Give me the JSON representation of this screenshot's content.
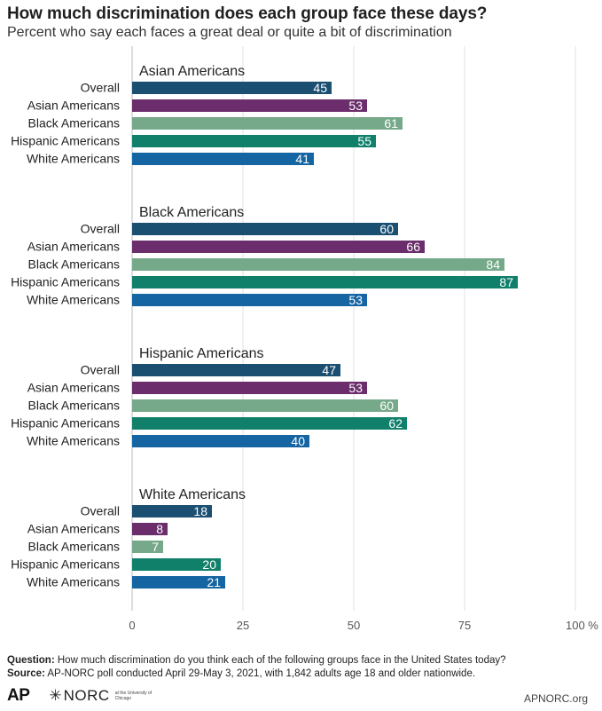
{
  "header": {
    "title": "How much discrimination does each group face these days?",
    "subtitle": "Percent who say each faces a great deal or quite a bit of discrimination"
  },
  "chart_data": {
    "type": "bar",
    "orientation": "horizontal",
    "title": "How much discrimination does each group face these days?",
    "subtitle": "Percent who say each faces a great deal or quite a bit of discrimination",
    "xlim": [
      0,
      100
    ],
    "x_ticks": [
      "0",
      "25",
      "50",
      "75",
      "100 %"
    ],
    "x_tick_values": [
      0,
      25,
      50,
      75,
      100
    ],
    "grid": true,
    "categories": [
      "Overall",
      "Asian Americans",
      "Black Americans",
      "Hispanic Americans",
      "White Americans"
    ],
    "colors": [
      "#1b4f72",
      "#6b2d6b",
      "#76a98a",
      "#10806b",
      "#1565a3"
    ],
    "groups": [
      {
        "name": "Asian Americans",
        "values": [
          45,
          53,
          61,
          55,
          41
        ]
      },
      {
        "name": "Black Americans",
        "values": [
          60,
          66,
          84,
          87,
          53
        ]
      },
      {
        "name": "Hispanic Americans",
        "values": [
          47,
          53,
          60,
          62,
          40
        ]
      },
      {
        "name": "White Americans",
        "values": [
          18,
          8,
          7,
          20,
          21
        ]
      }
    ]
  },
  "footer": {
    "question_label": "Question:",
    "question_text": " How much discrimination do you think each of the following groups face in the United States today?",
    "source_label": "Source:",
    "source_text": " AP-NORC poll conducted April 29-May 3, 2021, with 1,842 adults age 18 and older nationwide.",
    "ap_logo": "AP",
    "norc_logo": "NORC",
    "norc_sub": "at the University of Chicago",
    "site": "APNORC.org"
  }
}
